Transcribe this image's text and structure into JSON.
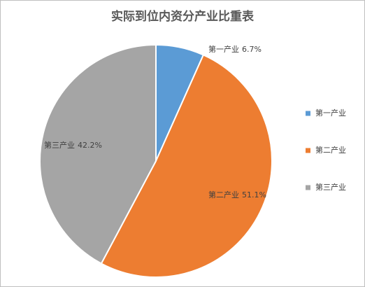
{
  "chart_data": {
    "type": "pie",
    "title": "实际到位内资分产业比重表",
    "categories": [
      "第一产业",
      "第二产业",
      "第三产业"
    ],
    "values": [
      6.7,
      51.1,
      42.2
    ],
    "value_labels": [
      "6.7%",
      "51.1%",
      "42.2%"
    ],
    "colors": [
      "#5b9bd5",
      "#ed7d31",
      "#a5a5a5"
    ],
    "legend": "right"
  }
}
